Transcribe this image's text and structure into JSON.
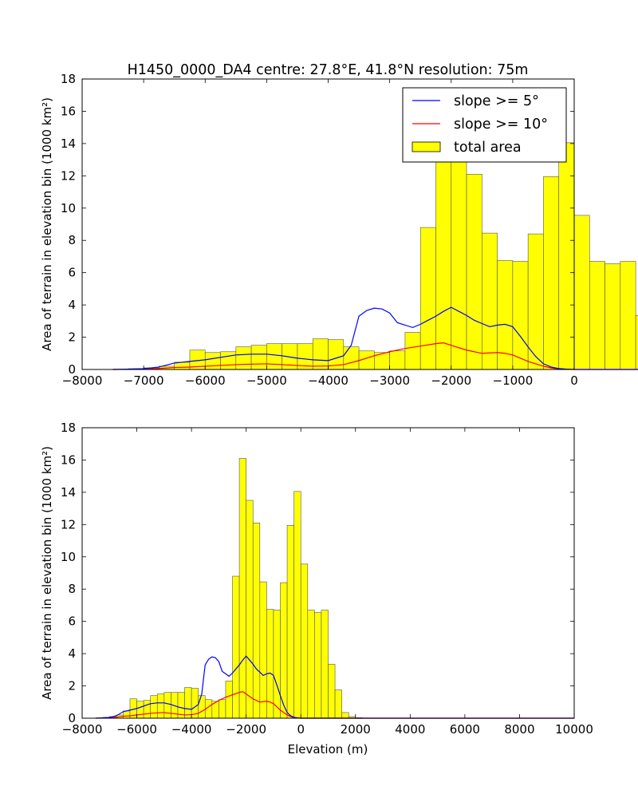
{
  "title": "H1450_0000_DA4    centre: 27.8°E, 41.8°N   resolution: 75m",
  "chart_data": [
    {
      "type": "bar",
      "ylabel": "Area of terrain in elevation bin (1000 km²)",
      "xlabel": "",
      "xlim": [
        -8000,
        0
      ],
      "ylim": [
        0,
        18
      ],
      "xticks": [
        "−8000",
        "−7000",
        "−6000",
        "−5000",
        "−4000",
        "−3000",
        "−2000",
        "−1000",
        "0"
      ],
      "yticks": [
        "0",
        "2",
        "4",
        "6",
        "8",
        "10",
        "12",
        "14",
        "16",
        "18"
      ],
      "legend": {
        "position": "top-right",
        "entries": [
          {
            "label": "slope >= 5°",
            "color": "#0000ff",
            "kind": "line"
          },
          {
            "label": "slope >= 10°",
            "color": "#ff0000",
            "kind": "line"
          },
          {
            "label": "total area",
            "color": "#ffff00",
            "kind": "patch"
          }
        ]
      }
    },
    {
      "type": "bar",
      "ylabel": "Area of terrain in elevation bin (1000 km²)",
      "xlabel": "Elevation (m)",
      "xlim": [
        -8000,
        10000
      ],
      "ylim": [
        0,
        18
      ],
      "xticks": [
        "−8000",
        "−6000",
        "−4000",
        "−2000",
        "0",
        "2000",
        "4000",
        "6000",
        "8000",
        "10000"
      ],
      "yticks": [
        "0",
        "2",
        "4",
        "6",
        "8",
        "10",
        "12",
        "14",
        "16",
        "18"
      ]
    }
  ],
  "histogram": {
    "bin_width": 250,
    "bin_start": -7500,
    "total_area": [
      0.02,
      0.05,
      0.1,
      0.2,
      0.45,
      1.2,
      1.05,
      1.1,
      1.4,
      1.5,
      1.6,
      1.6,
      1.6,
      1.9,
      1.85,
      1.4,
      1.15,
      1.05,
      1.15,
      2.3,
      8.8,
      16.1,
      13.5,
      12.1,
      8.45,
      6.75,
      6.7,
      8.4,
      11.95,
      14.05,
      9.55,
      6.7,
      6.55,
      6.7,
      3.35,
      1.75,
      0.35,
      0.1,
      0.03,
      0.01
    ],
    "slope5_elev": [
      -7500,
      -7250,
      -7000,
      -6750,
      -6500,
      -6250,
      -6000,
      -5750,
      -5500,
      -5250,
      -5000,
      -4750,
      -4500,
      -4250,
      -4000,
      -3750,
      -3625,
      -3500,
      -3375,
      -3250,
      -3125,
      -3000,
      -2875,
      -2750,
      -2625,
      -2500,
      -2375,
      -2250,
      -2125,
      -2000,
      -1875,
      -1750,
      -1625,
      -1500,
      -1375,
      -1250,
      -1125,
      -1000,
      -875,
      -750,
      -625,
      -500,
      -375,
      -250,
      -125,
      0,
      250,
      10000
    ],
    "slope5": [
      0.0,
      0.02,
      0.05,
      0.15,
      0.4,
      0.5,
      0.6,
      0.75,
      0.9,
      0.95,
      0.95,
      0.85,
      0.7,
      0.6,
      0.55,
      0.85,
      1.5,
      3.3,
      3.65,
      3.8,
      3.75,
      3.5,
      2.9,
      2.75,
      2.6,
      2.8,
      3.05,
      3.3,
      3.6,
      3.85,
      3.6,
      3.35,
      3.05,
      2.85,
      2.65,
      2.75,
      2.8,
      2.65,
      2.05,
      1.4,
      0.8,
      0.35,
      0.15,
      0.06,
      0.02,
      0.0,
      0.0,
      0.0
    ],
    "slope10_elev": [
      -7500,
      -7250,
      -7000,
      -6750,
      -6500,
      -6250,
      -6000,
      -5750,
      -5500,
      -5250,
      -5000,
      -4750,
      -4500,
      -4250,
      -4000,
      -3750,
      -3500,
      -3250,
      -3000,
      -2750,
      -2500,
      -2250,
      -2125,
      -2000,
      -1750,
      -1500,
      -1250,
      -1125,
      -1000,
      -750,
      -500,
      -375,
      -250,
      0,
      250,
      10000
    ],
    "slope10": [
      0.0,
      0.01,
      0.02,
      0.06,
      0.12,
      0.15,
      0.2,
      0.25,
      0.3,
      0.33,
      0.35,
      0.3,
      0.25,
      0.2,
      0.22,
      0.3,
      0.55,
      0.85,
      1.1,
      1.3,
      1.45,
      1.6,
      1.65,
      1.5,
      1.2,
      1.0,
      1.05,
      1.0,
      0.9,
      0.5,
      0.2,
      0.1,
      0.03,
      0.0,
      0.0,
      0.0
    ]
  },
  "colors": {
    "bar_fill": "#ffff00",
    "bar_edge": "#555555",
    "slope5": "#0000ff",
    "slope10": "#ff0000"
  }
}
